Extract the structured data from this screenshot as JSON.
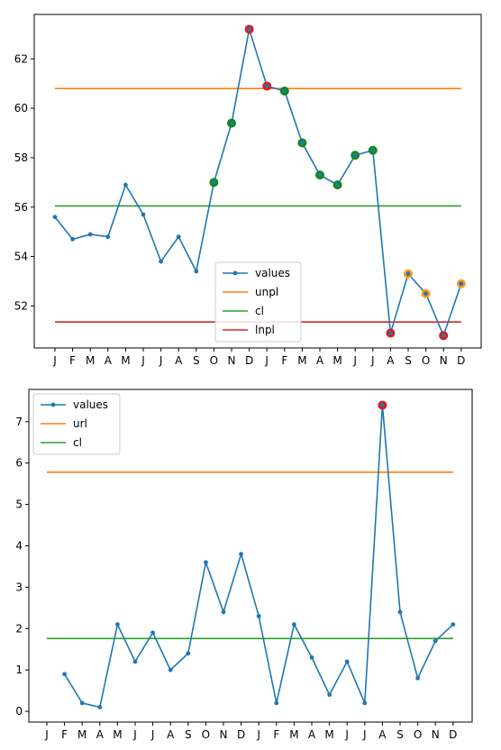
{
  "chart_data": [
    {
      "type": "line",
      "categories": [
        "J",
        "F",
        "M",
        "A",
        "M",
        "J",
        "J",
        "A",
        "S",
        "O",
        "N",
        "D",
        "J",
        "F",
        "M",
        "A",
        "M",
        "J",
        "J",
        "A",
        "S",
        "O",
        "N",
        "D"
      ],
      "series": [
        {
          "name": "values",
          "color": "#1f77b4",
          "values": [
            55.6,
            54.7,
            54.9,
            54.8,
            56.9,
            55.7,
            53.8,
            54.8,
            53.4,
            57.0,
            59.4,
            63.2,
            60.9,
            60.7,
            58.6,
            57.3,
            56.9,
            58.1,
            58.3,
            50.9,
            53.3,
            52.5,
            50.8,
            52.9
          ]
        },
        {
          "name": "unpl",
          "color": "#ff7f0e",
          "constant": 60.8
        },
        {
          "name": "cl",
          "color": "#2ca02c",
          "constant": 56.05
        },
        {
          "name": "lnpl",
          "color": "#d62728",
          "constant": 51.35
        }
      ],
      "highlights": {
        "red": [
          11,
          12,
          19,
          22
        ],
        "green": [
          9,
          10,
          13,
          14,
          15,
          16,
          17,
          18
        ],
        "orange": [
          20,
          21,
          23
        ]
      },
      "ylim": [
        50.3,
        63.8
      ],
      "yticks": [
        52,
        54,
        56,
        58,
        60,
        62
      ],
      "legend": "lower-center"
    },
    {
      "type": "line",
      "categories": [
        "J",
        "F",
        "M",
        "A",
        "M",
        "J",
        "J",
        "A",
        "S",
        "O",
        "N",
        "D",
        "J",
        "F",
        "M",
        "A",
        "M",
        "J",
        "J",
        "A",
        "S",
        "O",
        "N",
        "D"
      ],
      "series": [
        {
          "name": "values",
          "color": "#1f77b4",
          "values": [
            null,
            0.9,
            0.2,
            0.1,
            2.1,
            1.2,
            1.9,
            1.0,
            1.4,
            3.6,
            2.4,
            3.8,
            2.3,
            0.2,
            2.1,
            1.3,
            0.4,
            1.2,
            0.2,
            7.4,
            2.4,
            0.8,
            1.7,
            2.1
          ]
        },
        {
          "name": "url",
          "color": "#ff7f0e",
          "constant": 5.78
        },
        {
          "name": "cl",
          "color": "#2ca02c",
          "constant": 1.76
        }
      ],
      "highlights": {
        "red": [
          19
        ]
      },
      "ylim": [
        -0.26,
        7.78
      ],
      "yticks": [
        0,
        1,
        2,
        3,
        4,
        5,
        6,
        7
      ],
      "legend": "upper-left"
    }
  ]
}
